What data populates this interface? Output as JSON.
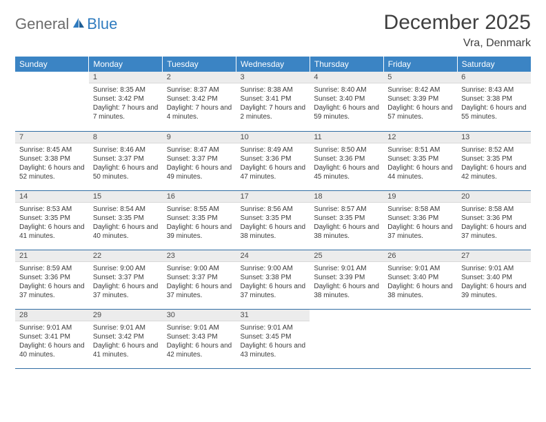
{
  "logo": {
    "part1": "General",
    "part2": "Blue"
  },
  "title": "December 2025",
  "location": "Vra, Denmark",
  "dayHeaders": [
    "Sunday",
    "Monday",
    "Tuesday",
    "Wednesday",
    "Thursday",
    "Friday",
    "Saturday"
  ],
  "colors": {
    "header_bg": "#3b84c4",
    "header_text": "#ffffff",
    "daynum_bg": "#ececec",
    "border": "#2f6ca3",
    "logo_gray": "#6b6b6b",
    "logo_blue": "#2f7bbf"
  },
  "weeks": [
    [
      {
        "n": "",
        "sr": "",
        "ss": "",
        "dl": ""
      },
      {
        "n": "1",
        "sr": "Sunrise: 8:35 AM",
        "ss": "Sunset: 3:42 PM",
        "dl": "Daylight: 7 hours and 7 minutes."
      },
      {
        "n": "2",
        "sr": "Sunrise: 8:37 AM",
        "ss": "Sunset: 3:42 PM",
        "dl": "Daylight: 7 hours and 4 minutes."
      },
      {
        "n": "3",
        "sr": "Sunrise: 8:38 AM",
        "ss": "Sunset: 3:41 PM",
        "dl": "Daylight: 7 hours and 2 minutes."
      },
      {
        "n": "4",
        "sr": "Sunrise: 8:40 AM",
        "ss": "Sunset: 3:40 PM",
        "dl": "Daylight: 6 hours and 59 minutes."
      },
      {
        "n": "5",
        "sr": "Sunrise: 8:42 AM",
        "ss": "Sunset: 3:39 PM",
        "dl": "Daylight: 6 hours and 57 minutes."
      },
      {
        "n": "6",
        "sr": "Sunrise: 8:43 AM",
        "ss": "Sunset: 3:38 PM",
        "dl": "Daylight: 6 hours and 55 minutes."
      }
    ],
    [
      {
        "n": "7",
        "sr": "Sunrise: 8:45 AM",
        "ss": "Sunset: 3:38 PM",
        "dl": "Daylight: 6 hours and 52 minutes."
      },
      {
        "n": "8",
        "sr": "Sunrise: 8:46 AM",
        "ss": "Sunset: 3:37 PM",
        "dl": "Daylight: 6 hours and 50 minutes."
      },
      {
        "n": "9",
        "sr": "Sunrise: 8:47 AM",
        "ss": "Sunset: 3:37 PM",
        "dl": "Daylight: 6 hours and 49 minutes."
      },
      {
        "n": "10",
        "sr": "Sunrise: 8:49 AM",
        "ss": "Sunset: 3:36 PM",
        "dl": "Daylight: 6 hours and 47 minutes."
      },
      {
        "n": "11",
        "sr": "Sunrise: 8:50 AM",
        "ss": "Sunset: 3:36 PM",
        "dl": "Daylight: 6 hours and 45 minutes."
      },
      {
        "n": "12",
        "sr": "Sunrise: 8:51 AM",
        "ss": "Sunset: 3:35 PM",
        "dl": "Daylight: 6 hours and 44 minutes."
      },
      {
        "n": "13",
        "sr": "Sunrise: 8:52 AM",
        "ss": "Sunset: 3:35 PM",
        "dl": "Daylight: 6 hours and 42 minutes."
      }
    ],
    [
      {
        "n": "14",
        "sr": "Sunrise: 8:53 AM",
        "ss": "Sunset: 3:35 PM",
        "dl": "Daylight: 6 hours and 41 minutes."
      },
      {
        "n": "15",
        "sr": "Sunrise: 8:54 AM",
        "ss": "Sunset: 3:35 PM",
        "dl": "Daylight: 6 hours and 40 minutes."
      },
      {
        "n": "16",
        "sr": "Sunrise: 8:55 AM",
        "ss": "Sunset: 3:35 PM",
        "dl": "Daylight: 6 hours and 39 minutes."
      },
      {
        "n": "17",
        "sr": "Sunrise: 8:56 AM",
        "ss": "Sunset: 3:35 PM",
        "dl": "Daylight: 6 hours and 38 minutes."
      },
      {
        "n": "18",
        "sr": "Sunrise: 8:57 AM",
        "ss": "Sunset: 3:35 PM",
        "dl": "Daylight: 6 hours and 38 minutes."
      },
      {
        "n": "19",
        "sr": "Sunrise: 8:58 AM",
        "ss": "Sunset: 3:36 PM",
        "dl": "Daylight: 6 hours and 37 minutes."
      },
      {
        "n": "20",
        "sr": "Sunrise: 8:58 AM",
        "ss": "Sunset: 3:36 PM",
        "dl": "Daylight: 6 hours and 37 minutes."
      }
    ],
    [
      {
        "n": "21",
        "sr": "Sunrise: 8:59 AM",
        "ss": "Sunset: 3:36 PM",
        "dl": "Daylight: 6 hours and 37 minutes."
      },
      {
        "n": "22",
        "sr": "Sunrise: 9:00 AM",
        "ss": "Sunset: 3:37 PM",
        "dl": "Daylight: 6 hours and 37 minutes."
      },
      {
        "n": "23",
        "sr": "Sunrise: 9:00 AM",
        "ss": "Sunset: 3:37 PM",
        "dl": "Daylight: 6 hours and 37 minutes."
      },
      {
        "n": "24",
        "sr": "Sunrise: 9:00 AM",
        "ss": "Sunset: 3:38 PM",
        "dl": "Daylight: 6 hours and 37 minutes."
      },
      {
        "n": "25",
        "sr": "Sunrise: 9:01 AM",
        "ss": "Sunset: 3:39 PM",
        "dl": "Daylight: 6 hours and 38 minutes."
      },
      {
        "n": "26",
        "sr": "Sunrise: 9:01 AM",
        "ss": "Sunset: 3:40 PM",
        "dl": "Daylight: 6 hours and 38 minutes."
      },
      {
        "n": "27",
        "sr": "Sunrise: 9:01 AM",
        "ss": "Sunset: 3:40 PM",
        "dl": "Daylight: 6 hours and 39 minutes."
      }
    ],
    [
      {
        "n": "28",
        "sr": "Sunrise: 9:01 AM",
        "ss": "Sunset: 3:41 PM",
        "dl": "Daylight: 6 hours and 40 minutes."
      },
      {
        "n": "29",
        "sr": "Sunrise: 9:01 AM",
        "ss": "Sunset: 3:42 PM",
        "dl": "Daylight: 6 hours and 41 minutes."
      },
      {
        "n": "30",
        "sr": "Sunrise: 9:01 AM",
        "ss": "Sunset: 3:43 PM",
        "dl": "Daylight: 6 hours and 42 minutes."
      },
      {
        "n": "31",
        "sr": "Sunrise: 9:01 AM",
        "ss": "Sunset: 3:45 PM",
        "dl": "Daylight: 6 hours and 43 minutes."
      },
      {
        "n": "",
        "sr": "",
        "ss": "",
        "dl": ""
      },
      {
        "n": "",
        "sr": "",
        "ss": "",
        "dl": ""
      },
      {
        "n": "",
        "sr": "",
        "ss": "",
        "dl": ""
      }
    ]
  ]
}
